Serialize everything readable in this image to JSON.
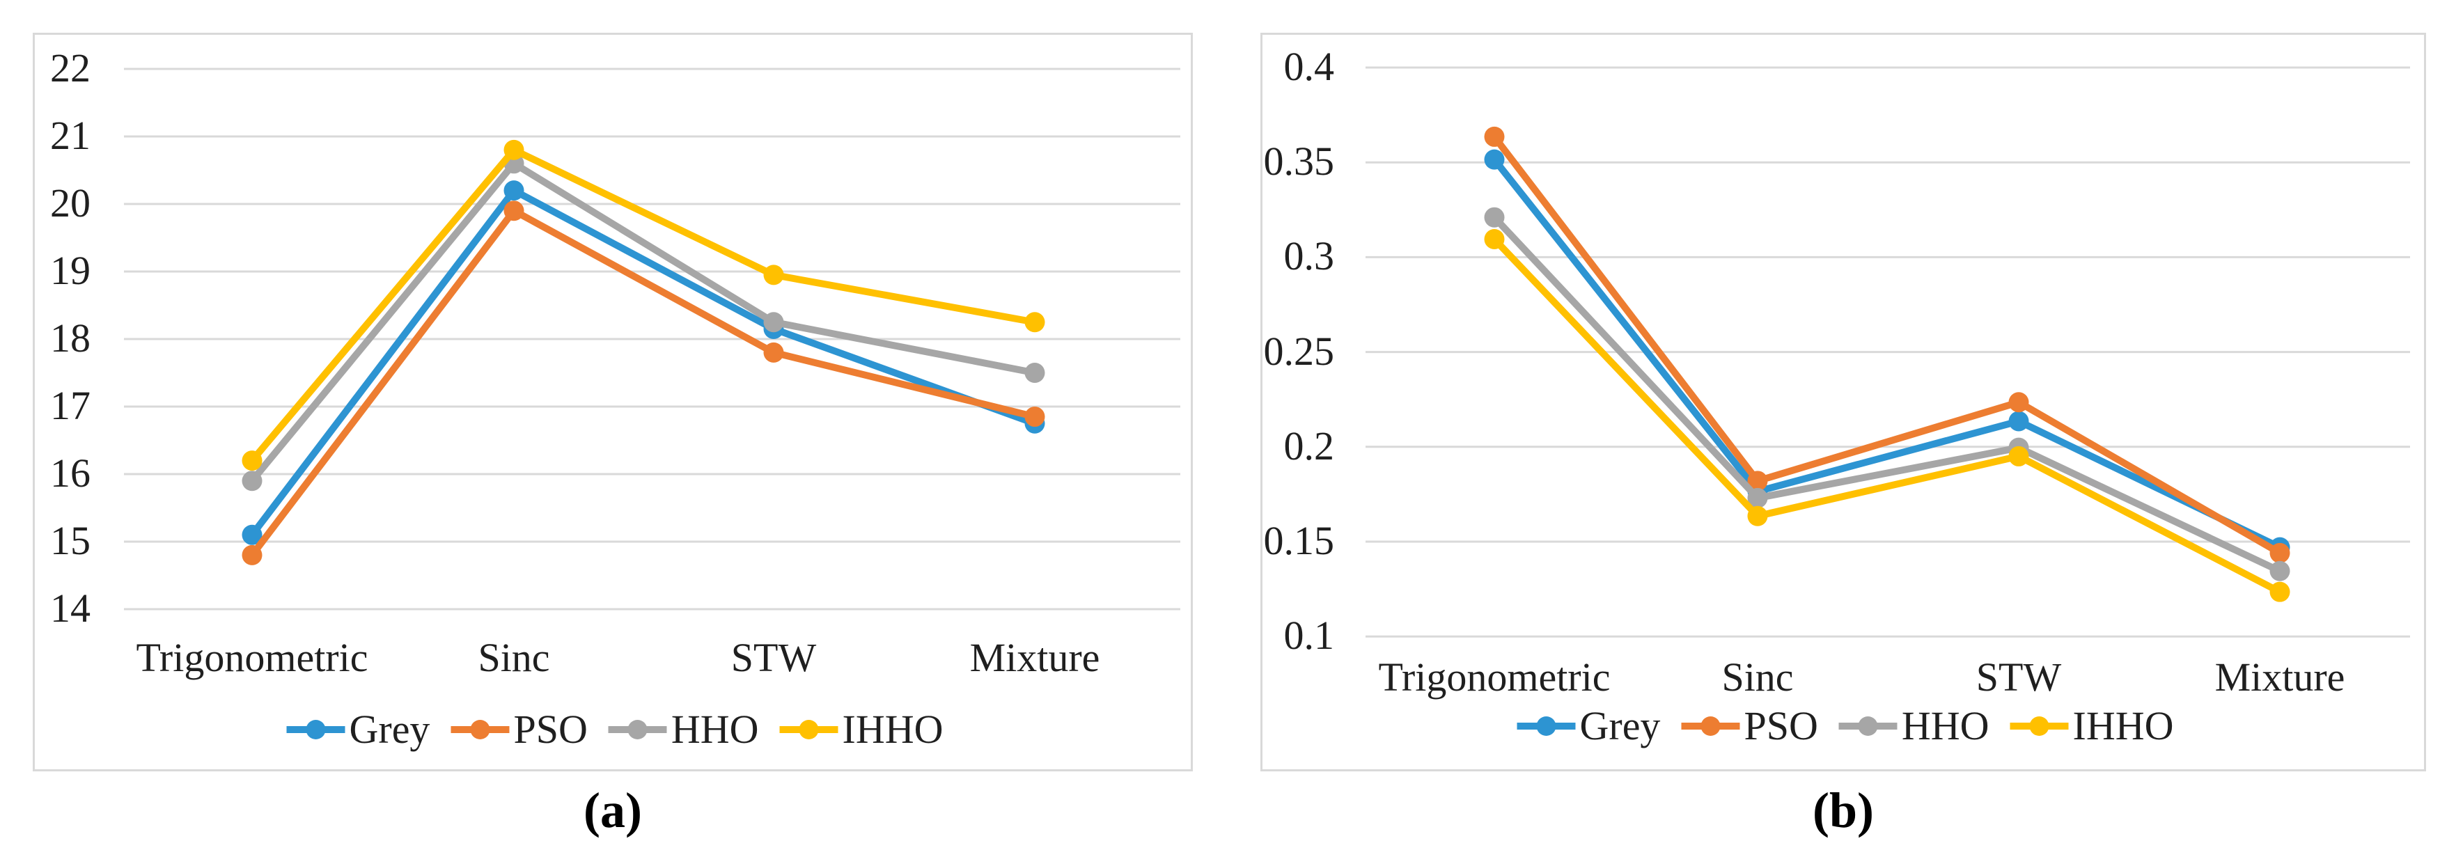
{
  "page": {
    "background": "#ffffff",
    "text_color": "#1f1f1f",
    "gridline_color": "#d9d9d9",
    "border_color": "#d9d9d9"
  },
  "chart_data": [
    {
      "id": "a",
      "type": "line",
      "caption": "(a)",
      "title": "",
      "xlabel": "",
      "ylabel": "",
      "categories": [
        "Trigonometric",
        "Sinc",
        "STW",
        "Mixture"
      ],
      "y_tick_labels": [
        "22",
        "21",
        "20",
        "19",
        "18",
        "17",
        "16",
        "15",
        "14"
      ],
      "ylim": [
        14,
        22
      ],
      "grid": "horizontal",
      "legend_position": "bottom",
      "series": [
        {
          "name": "Grey",
          "color": "#2D94D2",
          "values": [
            15.1,
            20.2,
            18.15,
            16.75
          ]
        },
        {
          "name": "PSO",
          "color": "#ED7D31",
          "values": [
            14.8,
            19.9,
            17.8,
            16.85
          ]
        },
        {
          "name": "HHO",
          "color": "#A6A6A6",
          "values": [
            15.9,
            20.6,
            18.25,
            17.5
          ]
        },
        {
          "name": "IHHO",
          "color": "#FFC000",
          "values": [
            16.2,
            20.8,
            18.95,
            18.25
          ]
        }
      ]
    },
    {
      "id": "b",
      "type": "line",
      "caption": "(b)",
      "title": "",
      "xlabel": "",
      "ylabel": "",
      "categories": [
        "Trigonometric",
        "Sinc",
        "STW",
        "Mixture"
      ],
      "y_tick_labels": [
        "0.4",
        "0.35",
        "0.3",
        "0.25",
        "0.2",
        "0.15",
        "0.1"
      ],
      "ylim": [
        0.1,
        0.4
      ],
      "grid": "horizontal",
      "legend_position": "bottom",
      "series": [
        {
          "name": "Grey",
          "color": "#2D94D2",
          "values": [
            0.3515,
            0.1765,
            0.2135,
            0.147
          ]
        },
        {
          "name": "PSO",
          "color": "#ED7D31",
          "values": [
            0.3635,
            0.182,
            0.2235,
            0.144
          ]
        },
        {
          "name": "HHO",
          "color": "#A6A6A6",
          "values": [
            0.321,
            0.173,
            0.1995,
            0.1345
          ]
        },
        {
          "name": "IHHO",
          "color": "#FFC000",
          "values": [
            0.3095,
            0.1635,
            0.195,
            0.1235
          ]
        }
      ]
    }
  ]
}
